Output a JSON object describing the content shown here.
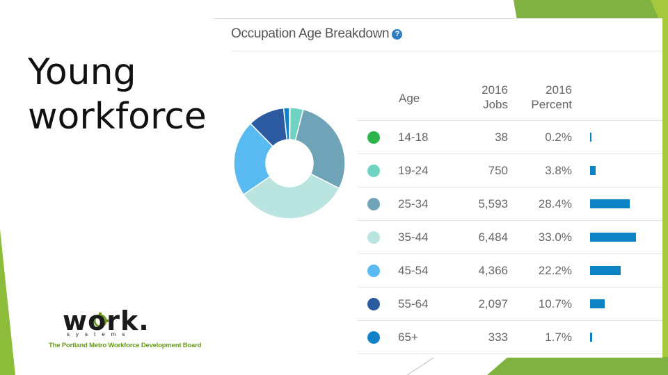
{
  "slide": {
    "title_lines": [
      "Young",
      "workforce"
    ],
    "logo": {
      "word": "work.",
      "sub": "systems",
      "tagline": "The Portland Metro Workforce Development Board",
      "accent": "#6a9a1c"
    },
    "theme_colors": {
      "green_light": "#a6c83c",
      "green_dark": "#5a8a2a",
      "green_mid": "#7fb241"
    }
  },
  "panel": {
    "title": "Occupation Age Breakdown",
    "help_icon_glyph": "?",
    "columns": {
      "age": "Age",
      "jobs": [
        "2016",
        "Jobs"
      ],
      "percent": [
        "2016",
        "Percent"
      ]
    }
  },
  "chart_data": {
    "type": "pie",
    "title": "Occupation Age Breakdown",
    "donut": true,
    "categories": [
      "14-18",
      "19-24",
      "25-34",
      "35-44",
      "45-54",
      "55-64",
      "65+"
    ],
    "values": [
      38,
      750,
      5593,
      6484,
      4366,
      2097,
      333
    ],
    "values_label": [
      "38",
      "750",
      "5,593",
      "6,484",
      "4,366",
      "2,097",
      "333"
    ],
    "percents": [
      0.2,
      3.8,
      28.4,
      33.0,
      22.2,
      10.7,
      1.7
    ],
    "percent_labels": [
      "0.2%",
      "3.8%",
      "28.4%",
      "33.0%",
      "22.2%",
      "10.7%",
      "1.7%"
    ],
    "colors": [
      "#2bb54a",
      "#6fd3c2",
      "#6fa3b8",
      "#b9e4e0",
      "#58baf0",
      "#2b5aa0",
      "#1282c8"
    ],
    "bar_color": "#0d82c5",
    "bar_max_percent": 33.0
  }
}
